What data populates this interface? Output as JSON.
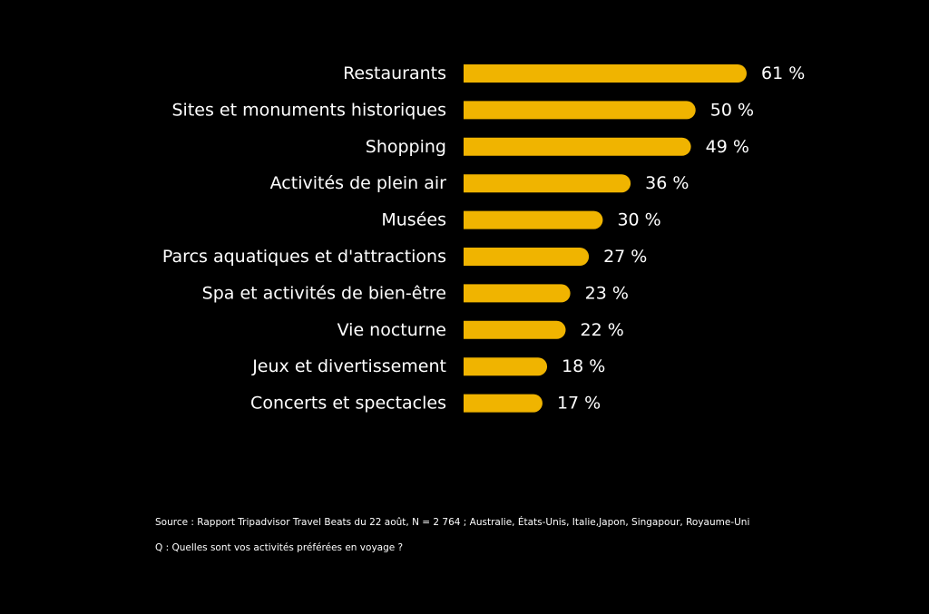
{
  "chart_data": {
    "type": "bar",
    "orientation": "horizontal",
    "categories": [
      "Restaurants",
      "Sites et monuments historiques",
      "Shopping",
      "Activités de plein air",
      "Musées",
      "Parcs aquatiques et d'attractions",
      "Spa et activités de bien-être",
      "Vie nocturne",
      "Jeux et divertissement",
      "Concerts et spectacles"
    ],
    "values": [
      61,
      50,
      49,
      36,
      30,
      27,
      23,
      22,
      18,
      17
    ],
    "value_labels": [
      "61 %",
      "50 %",
      "49 %",
      "36 %",
      "30 %",
      "27 %",
      "23 %",
      "22 %",
      "18 %",
      "17 %"
    ],
    "unit": "%",
    "xlim": [
      0,
      61
    ],
    "grid": false,
    "legend": "none",
    "bar_color": "#F0B400",
    "background_color": "#000000",
    "text_color": "#FFFFFF"
  },
  "notes": {
    "source": "Source : Rapport Tripadvisor Travel Beats du 22 août, N = 2 764 ; Australie, États-Unis, Italie,Japon, Singapour, Royaume-Uni",
    "question": "Q : Quelles sont vos activités préférées en voyage ?"
  }
}
